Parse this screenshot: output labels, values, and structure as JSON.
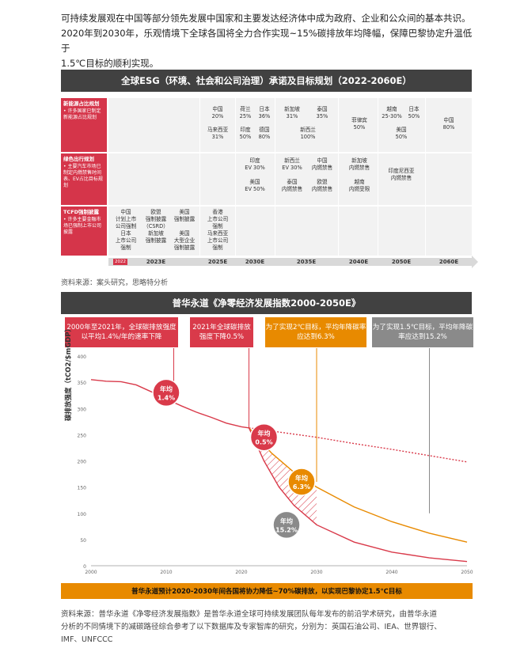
{
  "intro": {
    "line1": "可持续发展观在中国等部分领先发展中国家和主要发达经济体中成为政府、企业和公众间的基本共识。",
    "line2": "2020年到2030年，乐观情境下全球各国将全力合作实现~15%碳排放年均降幅，保障巴黎协定升温低于",
    "line3": "1.5℃目标的顺利实现。"
  },
  "esg": {
    "title": "全球ESG（环境、社会和公司治理）承诺及目标规划（2022-2060E）",
    "rows": [
      {
        "title": "新能源占比规划",
        "sub": "• 许多国家已制定新能源占比规划"
      },
      {
        "title": "绿色出行规划",
        "sub": "• 主要汽车市场已制定内燃禁售时间表、EV占比目标规划"
      },
      {
        "title": "TCFD强制披露",
        "sub": "• 许多主要金融市场已强制上市公司披露"
      }
    ],
    "years": [
      "2022",
      "2023E",
      "2025E",
      "2030E",
      "2035E",
      "2040E",
      "2050E",
      "2060E"
    ],
    "row1": [
      {
        "t": "中国\n20%"
      },
      {
        "t": "马来西亚\n31%"
      },
      {
        "t": "荷兰\n25%"
      },
      {
        "t": "印度\n50%"
      },
      {
        "t": "日本\n36%"
      },
      {
        "t": "德国\n80%"
      },
      {
        "t": "新加坡\n31%"
      },
      {
        "t": "泰国\n35%"
      },
      {
        "t": "新西兰\n100%"
      },
      {
        "t": "菲律宾\n50%"
      },
      {
        "t": "越南\n25-30%"
      },
      {
        "t": "日本\n50%"
      },
      {
        "t": "美国\n50%"
      },
      {
        "t": "中国\n80%"
      }
    ],
    "row2": [
      {
        "t": "印度\nEV 30%"
      },
      {
        "t": "美国\nEV 50%"
      },
      {
        "t": "新西兰\nEV 30%"
      },
      {
        "t": "中国\n内燃禁售"
      },
      {
        "t": "泰国\n内燃禁售"
      },
      {
        "t": "欧盟\n内燃禁售"
      },
      {
        "t": "新加坡\n内燃禁售"
      },
      {
        "t": "越南\n内燃受限"
      },
      {
        "t": "印度尼西亚\n内燃禁售"
      }
    ],
    "row3": [
      {
        "t": "中国\n计划上市\n公司强制"
      },
      {
        "t": "欧盟\n强制披露\n（CSRD）"
      },
      {
        "t": "美国\n强制披露"
      },
      {
        "t": "日本\n上市公司\n强制"
      },
      {
        "t": "新加坡\n强制披露"
      },
      {
        "t": "美国\n大型企业\n强制披露"
      },
      {
        "t": "香港\n上市公司\n强制"
      },
      {
        "t": "马来西亚\n上市公司\n强制"
      }
    ],
    "source": "资料来源：案头研究，思略特分析"
  },
  "chart": {
    "title": "普华永道《净零经济发展指数2000-2050E》",
    "ylabel": "碳排放强度（tCO2/$mGDP）",
    "callouts": [
      {
        "text": "2000年至2021年，全球碳排放强度以平均1.4%/年的速率下降",
        "color": "#d93a4a"
      },
      {
        "text": "2021年全球碳排放强度下降0.5%",
        "color": "#d93a4a"
      },
      {
        "text": "为了实现2℃目标，平均年降碳率应达到6.3%",
        "color": "#e88a00"
      },
      {
        "text": "为了实现1.5℃目标，平均年降碳率应达到15.2%",
        "color": "#8a8a8a"
      }
    ],
    "circles": [
      {
        "line1": "年均",
        "line2": "1.4%",
        "color": "#d93a4a"
      },
      {
        "line1": "年均",
        "line2": "0.5%",
        "color": "#d93a4a"
      },
      {
        "line1": "年均",
        "line2": "6.3%",
        "color": "#e88a00"
      },
      {
        "line1": "年均",
        "line2": "15.2%",
        "color": "#8a8a8a"
      }
    ],
    "bottom_banner": "普华永道预计2020-2030年间各国将协力降低~70%碳排放，以实现巴黎协定1.5℃目标"
  },
  "chart_data": {
    "type": "line",
    "title": "普华永道《净零经济发展指数2000-2050E》",
    "xlabel": "",
    "ylabel": "碳排放强度（tCO2/$mGDP）",
    "xlim": [
      2000,
      2050
    ],
    "ylim": [
      0,
      400
    ],
    "xticks": [
      2000,
      2010,
      2020,
      2030,
      2040,
      2050
    ],
    "yticks": [
      0,
      50,
      100,
      150,
      200,
      250,
      300,
      350,
      400
    ],
    "grid": false,
    "series": [
      {
        "x": [
          2000,
          2002,
          2004,
          2006,
          2008,
          2010,
          2012,
          2014,
          2016,
          2018,
          2020,
          2021
        ],
        "y": [
          355,
          352,
          351,
          345,
          332,
          318,
          305,
          293,
          283,
          272,
          265,
          263
        ],
        "color": "#d93a4a",
        "style": "solid"
      },
      {
        "x": [
          2021,
          2025,
          2030,
          2035,
          2040,
          2045,
          2050
        ],
        "y": [
          263,
          255,
          245,
          233,
          222,
          210,
          198
        ],
        "color": "#d93a4a",
        "style": "dotted"
      },
      {
        "x": [
          2021,
          2024,
          2027,
          2030,
          2035,
          2040,
          2045,
          2050
        ],
        "y": [
          263,
          215,
          178,
          150,
          112,
          84,
          62,
          45
        ],
        "color": "#e88a00",
        "style": "solid"
      },
      {
        "x": [
          2021,
          2023,
          2025,
          2027,
          2030,
          2035,
          2040,
          2045,
          2050
        ],
        "y": [
          263,
          200,
          150,
          115,
          78,
          45,
          26,
          15,
          8
        ],
        "color": "#d93a4a",
        "style": "solid"
      }
    ]
  },
  "footer": {
    "line1": "资料来源：普华永道《净零经济发展指数》是普华永道全球可持续发展团队每年发布的前沿学术研究，由普华永道",
    "line2": "分析的不同情境下的减碳路径综合参考了以下数据库及专家智库的研究，分别为：英国石油公司、IEA、世界银行、",
    "line3": "IMF、UNFCCC"
  }
}
